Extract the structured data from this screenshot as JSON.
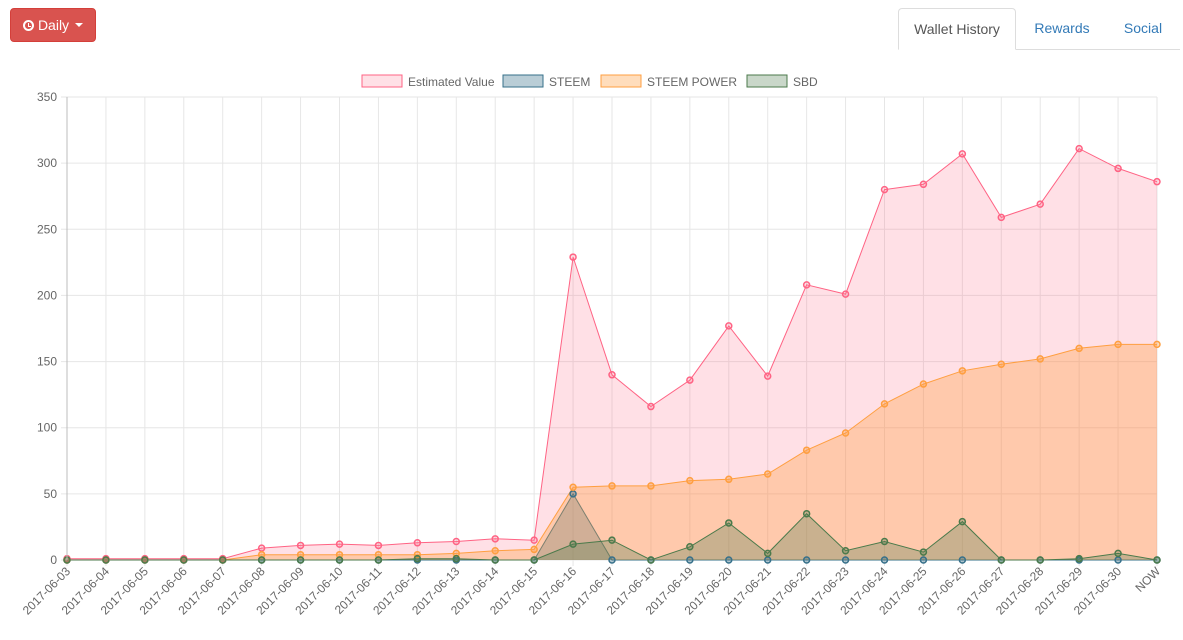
{
  "toolbar": {
    "period_label": "Daily",
    "period_icon": "clock-icon"
  },
  "tabs": [
    {
      "label": "Wallet History",
      "active": true
    },
    {
      "label": "Rewards",
      "active": false
    },
    {
      "label": "Social",
      "active": false
    }
  ],
  "colors": {
    "estimated_value": "#ff6384",
    "steem": "#36708a",
    "steem_power": "#ff9f40",
    "sbd": "#4b7a4b",
    "tab_link": "#337ab7",
    "button": "#d9534f"
  },
  "chart_data": {
    "type": "area",
    "title": "",
    "xlabel": "",
    "ylabel": "",
    "ylim": [
      0,
      350
    ],
    "yticks": [
      0,
      50,
      100,
      150,
      200,
      250,
      300,
      350
    ],
    "grid": true,
    "legend_position": "top-center",
    "x": [
      "2017-06-03",
      "2017-06-04",
      "2017-06-05",
      "2017-06-06",
      "2017-06-07",
      "2017-06-08",
      "2017-06-09",
      "2017-06-10",
      "2017-06-11",
      "2017-06-12",
      "2017-06-13",
      "2017-06-14",
      "2017-06-15",
      "2017-06-16",
      "2017-06-17",
      "2017-06-18",
      "2017-06-19",
      "2017-06-20",
      "2017-06-21",
      "2017-06-22",
      "2017-06-23",
      "2017-06-24",
      "2017-06-25",
      "2017-06-26",
      "2017-06-27",
      "2017-06-28",
      "2017-06-29",
      "2017-06-30",
      "NOW"
    ],
    "series": [
      {
        "name": "Estimated Value",
        "values": [
          1,
          1,
          1,
          1,
          1,
          9,
          11,
          12,
          11,
          13,
          14,
          16,
          15,
          229,
          140,
          116,
          136,
          177,
          139,
          208,
          201,
          280,
          284,
          307,
          259,
          269,
          311,
          296,
          286
        ]
      },
      {
        "name": "STEEM",
        "values": [
          0,
          0,
          0,
          0,
          0,
          0,
          0,
          0,
          0,
          0,
          0,
          0,
          0,
          50,
          0,
          0,
          0,
          0,
          0,
          0,
          0,
          0,
          0,
          0,
          0,
          0,
          0,
          0,
          0
        ]
      },
      {
        "name": "STEEM POWER",
        "values": [
          0,
          0,
          0,
          0,
          0,
          4,
          4,
          4,
          4,
          4,
          5,
          7,
          8,
          55,
          56,
          56,
          60,
          61,
          65,
          83,
          96,
          118,
          133,
          143,
          148,
          152,
          160,
          163,
          163
        ]
      },
      {
        "name": "SBD",
        "values": [
          0,
          0,
          0,
          0,
          0,
          0,
          0,
          0,
          0,
          1,
          1,
          0,
          0,
          12,
          15,
          0,
          10,
          28,
          5,
          35,
          7,
          14,
          6,
          29,
          0,
          0,
          1,
          5,
          0
        ]
      }
    ]
  }
}
